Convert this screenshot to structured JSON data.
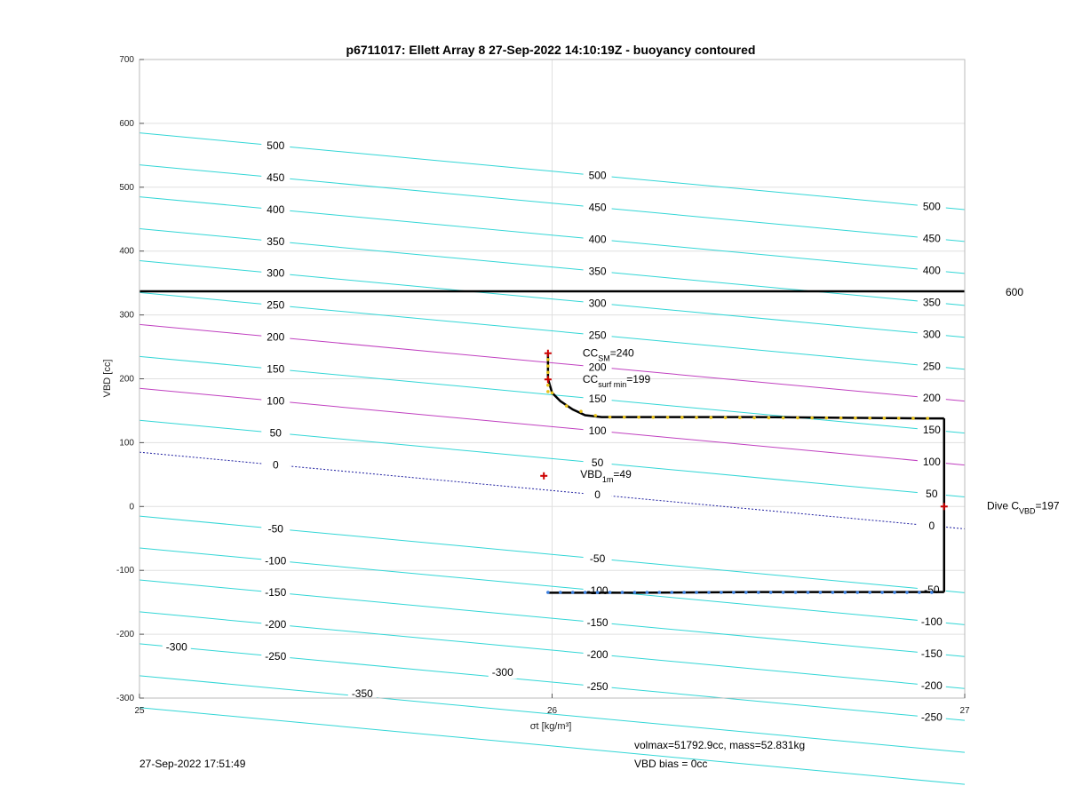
{
  "chart_data": {
    "type": "line",
    "title": "p6711017: Ellett Array 8 27-Sep-2022 14:10:19Z - buoyancy contoured",
    "xlabel": "σt [kg/m³]",
    "ylabel": "VBD [cc]",
    "xlim": [
      25,
      27
    ],
    "ylim": [
      -300,
      700
    ],
    "xticks": [
      "25",
      "26",
      "27"
    ],
    "yticks": [
      "-300",
      "-200",
      "-100",
      "0",
      "100",
      "200",
      "300",
      "400",
      "500",
      "600",
      "700"
    ],
    "grid": true,
    "contours": {
      "levels": [
        -350,
        -300,
        -250,
        -200,
        -150,
        -100,
        -50,
        0,
        50,
        100,
        150,
        200,
        250,
        300,
        350,
        400,
        450,
        500
      ],
      "highlight_levels": [
        100,
        200
      ],
      "zero_level": 0,
      "slope_per_sigma": -60,
      "intercept_at_25": {
        "-350": -315,
        "-300": -265,
        "-250": -215,
        "-200": -165,
        "-150": -115,
        "-100": -65,
        "-50": -15,
        "0": 85,
        "50": 135,
        "100": 185,
        "150": 235,
        "200": 285,
        "250": 335,
        "300": 385,
        "350": 435,
        "400": 485,
        "450": 535,
        "500": 585
      },
      "label_positions": {
        "left": {
          "x": 25.33,
          "levels": [
            "500",
            "450",
            "400",
            "350",
            "300",
            "250",
            "200",
            "150",
            "100",
            "50",
            "0",
            "-50",
            "-100",
            "-150",
            "-200",
            "-250"
          ]
        },
        "mid": {
          "x": 26.11,
          "levels": [
            "500",
            "450",
            "400",
            "350",
            "300",
            "250",
            "200",
            "150",
            "100",
            "50",
            "0",
            "-50",
            "-100",
            "-150",
            "-200",
            "-250"
          ]
        },
        "right": {
          "x": 26.92,
          "levels": [
            "500",
            "450",
            "400",
            "350",
            "300",
            "250",
            "200",
            "150",
            "100",
            "50",
            "0",
            "-50",
            "-100",
            "-150",
            "-200",
            "-250"
          ]
        },
        "extra": [
          {
            "text": "-300",
            "x": 25.09,
            "y": -220
          },
          {
            "text": "-300",
            "x": 25.88,
            "y": -260
          },
          {
            "text": "-350",
            "x": 25.54,
            "y": -293
          }
        ]
      }
    },
    "reference_line": {
      "y": 337,
      "label": "600"
    },
    "dive_path": {
      "x": [
        25.99,
        25.99,
        25.99,
        26.0,
        26.02,
        26.05,
        26.08,
        26.12,
        26.3,
        26.5,
        26.7,
        26.9,
        26.95
      ],
      "y": [
        238,
        225,
        200,
        178,
        165,
        152,
        143,
        140,
        140,
        140,
        139,
        138,
        138
      ]
    },
    "climb_path": {
      "x": [
        25.99,
        26.2,
        26.5,
        26.8,
        26.9,
        26.95
      ],
      "y": [
        -135,
        -135,
        -134,
        -134,
        -134,
        -134
      ]
    },
    "vertical_segment": {
      "x": 26.95,
      "y": [
        -134,
        138
      ]
    },
    "markers": [
      {
        "label": "CC_SM",
        "value": "=240",
        "sub": "SM",
        "base": "CC",
        "x": 25.99,
        "y": 240
      },
      {
        "label": "CC_surf min",
        "value": "=199",
        "sub": "surf min",
        "base": "CC",
        "x": 25.99,
        "y": 199
      },
      {
        "label": "VBD_1m",
        "value": "=49",
        "sub": "1m",
        "base": "VBD",
        "x": 25.98,
        "y": 48
      },
      {
        "label": "Dive C_VBD",
        "value": "=197",
        "sub": "VBD",
        "base": "Dive C",
        "x": 26.95,
        "y": 0
      }
    ]
  },
  "footer": {
    "timestamp": "27-Sep-2022 17:51:49",
    "vol_mass": "volmax=51792.9cc, mass=52.831kg",
    "vbd_bias": "VBD bias = 0cc"
  },
  "colors": {
    "contour": "#33d6d6",
    "highlight": "#c040c0",
    "zero": "#1f1fa0",
    "path": "#000000",
    "dive_dots": "#e8c21a",
    "climb_dots": "#3a7fe0",
    "marker": "#cc0000",
    "grid": "#e0e0e0"
  }
}
